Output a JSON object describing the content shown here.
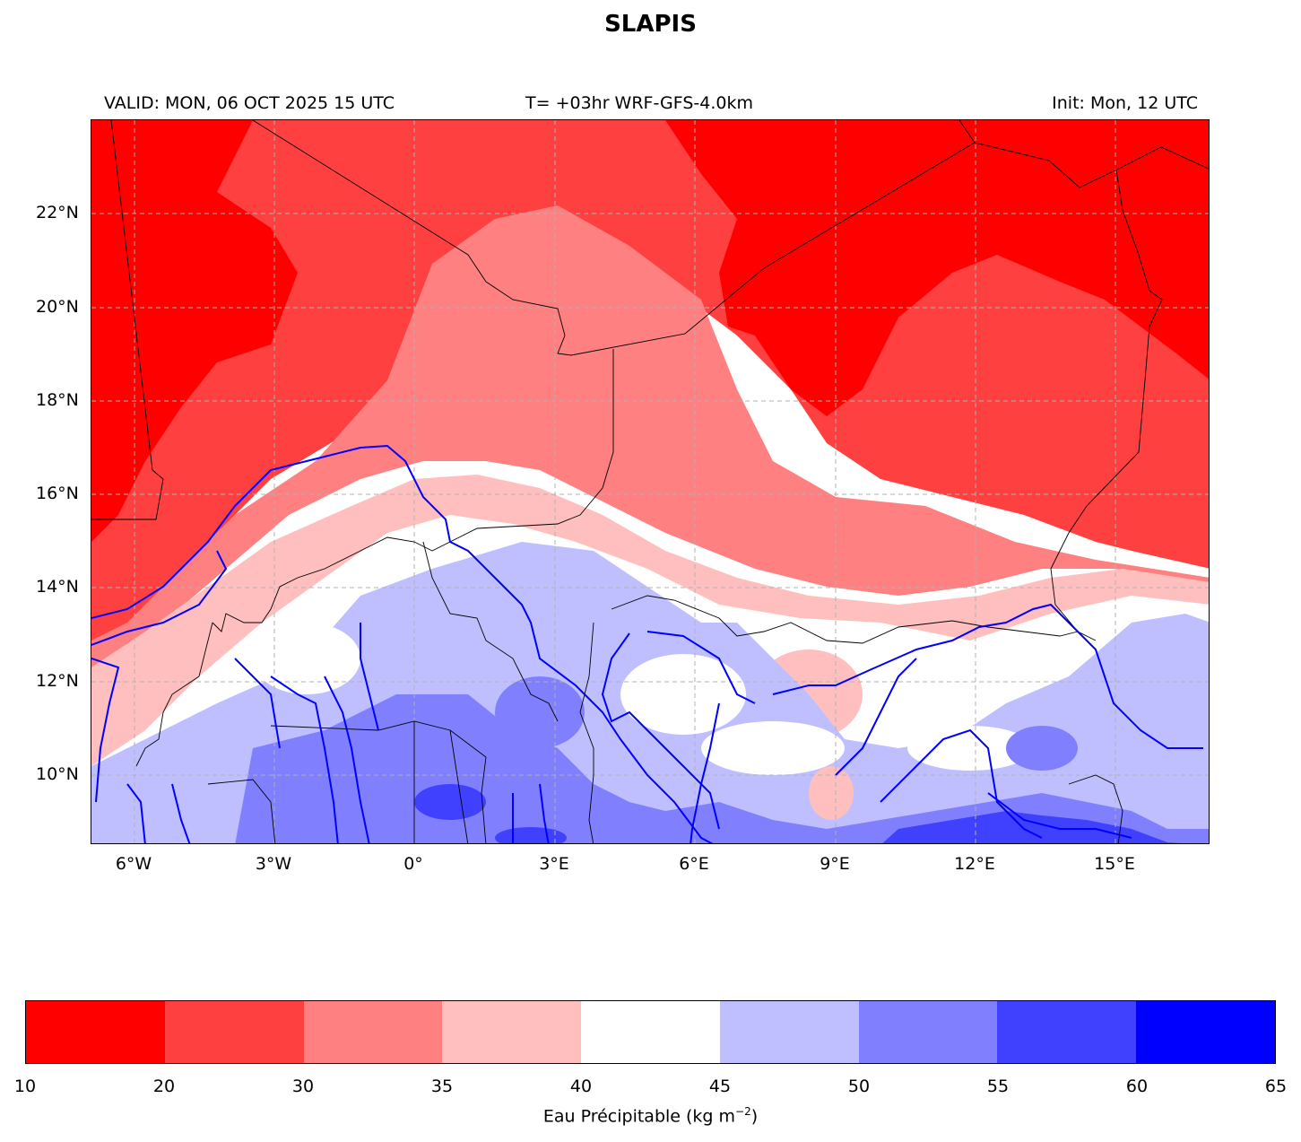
{
  "title": "SLAPIS",
  "header": {
    "valid": "VALID: MON, 06 OCT 2025 15 UTC",
    "model": "T= +03hr WRF-GFS-4.0km",
    "init": "Init: Mon, 12 UTC"
  },
  "map": {
    "lon_range": [
      -7,
      17
    ],
    "lat_range": [
      8.5,
      24
    ],
    "lat_ticks": [
      "22°N",
      "20°N",
      "18°N",
      "16°N",
      "14°N",
      "12°N",
      "10°N"
    ],
    "lon_ticks": [
      "6°W",
      "3°W",
      "0°",
      "3°E",
      "6°E",
      "9°E",
      "12°E",
      "15°E"
    ],
    "gridlines": true
  },
  "colorbar": {
    "levels": [
      "10",
      "20",
      "30",
      "35",
      "40",
      "45",
      "50",
      "55",
      "60",
      "65"
    ],
    "colors": [
      "#ff0000",
      "#ff4040",
      "#ff8080",
      "#ffbfbf",
      "#ffffff",
      "#bfbfff",
      "#8080ff",
      "#4040ff",
      "#0000ff"
    ],
    "label_main": "Eau Précipitable (kg m",
    "label_exp": "−2",
    "label_end": ")"
  }
}
